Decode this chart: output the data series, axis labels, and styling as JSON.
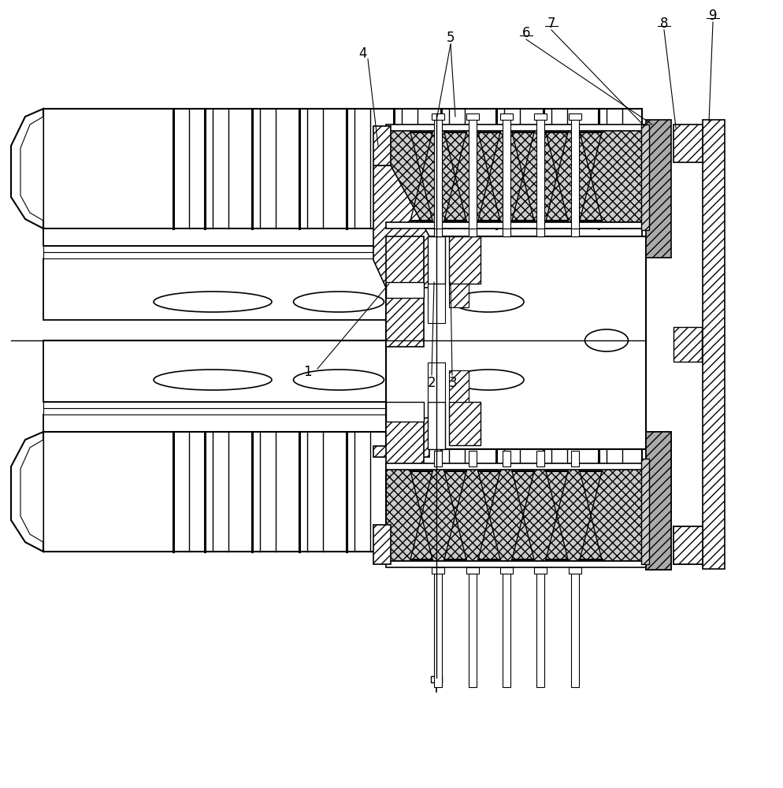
{
  "bg": "#ffffff",
  "lc": "#000000",
  "fig_w": 9.94,
  "fig_h": 10.0,
  "dpi": 100,
  "hatch_gray": "#aaaaaa",
  "spring_bg": "#cccccc",
  "outer_hatch_color": "#888888"
}
